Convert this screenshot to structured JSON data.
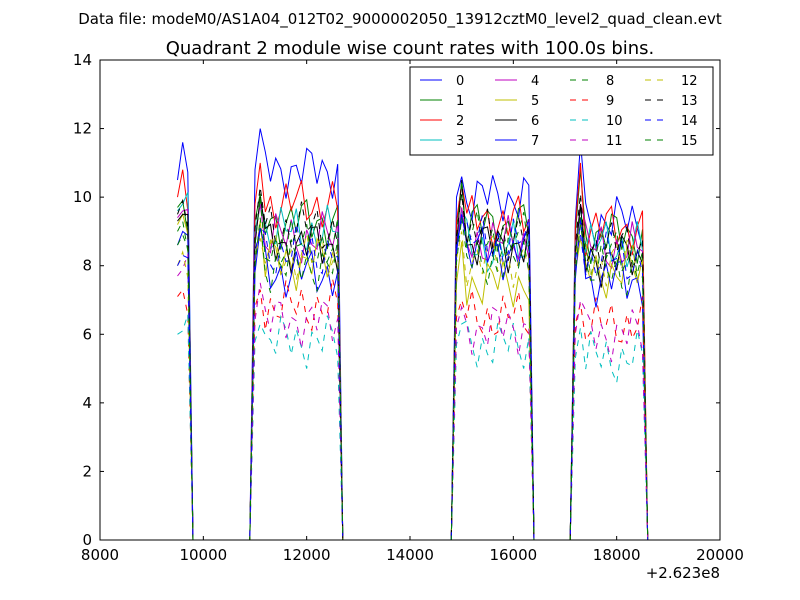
{
  "chart_data": {
    "type": "line",
    "suptitle": "Data file: modeM0/AS1A04_012T02_9000002050_13912cztM0_level2_quad_clean.evt",
    "title": "Quadrant 2 module wise count rates with 100.0s bins.",
    "xlabel": "",
    "ylabel": "",
    "x_offset_label": "+2.623e8",
    "xlim": [
      8000,
      20000
    ],
    "ylim": [
      0,
      14
    ],
    "xticks": [
      8000,
      10000,
      12000,
      14000,
      16000,
      18000,
      20000
    ],
    "yticks": [
      0,
      2,
      4,
      6,
      8,
      10,
      12,
      14
    ],
    "grid": false,
    "legend": {
      "placement": "top-right",
      "columns": 4
    },
    "segments": [
      [
        9500,
        9700
      ],
      [
        11000,
        12600
      ],
      [
        14900,
        16300
      ],
      [
        17200,
        18500
      ]
    ],
    "series": [
      {
        "name": "0",
        "color": "#0000ff",
        "dash": "solid",
        "levels": [
          10.5,
          10.8,
          10.0,
          9.3
        ],
        "peaks": [
          11.6,
          12.0,
          10.6,
          11.6
        ]
      },
      {
        "name": "1",
        "color": "#008000",
        "dash": "solid",
        "levels": [
          9.7,
          9.3,
          9.2,
          8.9
        ],
        "peaks": [
          9.9,
          10.1,
          10.4,
          10.8
        ]
      },
      {
        "name": "2",
        "color": "#ff0000",
        "dash": "solid",
        "levels": [
          10.0,
          9.8,
          9.3,
          9.1
        ],
        "peaks": [
          10.8,
          11.0,
          10.4,
          11.0
        ]
      },
      {
        "name": "3",
        "color": "#00bfbf",
        "dash": "solid",
        "levels": [
          9.6,
          9.0,
          8.5,
          8.6
        ],
        "peaks": [
          9.8,
          9.8,
          9.6,
          9.7
        ]
      },
      {
        "name": "4",
        "color": "#bf00bf",
        "dash": "solid",
        "levels": [
          9.4,
          8.8,
          8.7,
          8.5
        ],
        "peaks": [
          9.6,
          9.8,
          9.7,
          9.8
        ]
      },
      {
        "name": "5",
        "color": "#bfbf00",
        "dash": "solid",
        "levels": [
          9.2,
          8.1,
          7.5,
          7.8
        ],
        "peaks": [
          9.5,
          9.3,
          8.7,
          8.8
        ]
      },
      {
        "name": "6",
        "color": "#000000",
        "dash": "solid",
        "levels": [
          9.3,
          8.6,
          8.6,
          8.2
        ],
        "peaks": [
          9.5,
          10.0,
          10.5,
          9.8
        ]
      },
      {
        "name": "7",
        "color": "#0000ff",
        "dash": "solid",
        "levels": [
          8.6,
          7.8,
          8.4,
          7.6
        ],
        "peaks": [
          9.0,
          9.1,
          9.5,
          9.4
        ]
      },
      {
        "name": "8",
        "color": "#008000",
        "dash": "dashed",
        "levels": [
          9.0,
          8.6,
          8.8,
          8.4
        ],
        "peaks": [
          9.3,
          10.0,
          10.5,
          9.5
        ]
      },
      {
        "name": "9",
        "color": "#ff0000",
        "dash": "dashed",
        "levels": [
          7.1,
          6.8,
          6.5,
          6.3
        ],
        "peaks": [
          7.3,
          7.3,
          7.0,
          6.9
        ]
      },
      {
        "name": "10",
        "color": "#00bfbf",
        "dash": "dashed",
        "levels": [
          6.0,
          5.8,
          5.7,
          5.3
        ],
        "peaks": [
          6.1,
          6.3,
          6.3,
          6.2
        ]
      },
      {
        "name": "11",
        "color": "#bf00bf",
        "dash": "dashed",
        "levels": [
          7.7,
          6.4,
          6.2,
          6.0
        ],
        "peaks": [
          7.9,
          7.5,
          6.8,
          7.0
        ]
      },
      {
        "name": "12",
        "color": "#bfbf00",
        "dash": "dashed",
        "levels": [
          8.0,
          8.3,
          8.2,
          8.2
        ],
        "peaks": [
          8.4,
          8.8,
          9.0,
          9.2
        ]
      },
      {
        "name": "13",
        "color": "#000000",
        "dash": "dashed",
        "levels": [
          9.5,
          9.1,
          8.9,
          8.6
        ],
        "peaks": [
          9.9,
          10.3,
          10.1,
          10.1
        ]
      },
      {
        "name": "14",
        "color": "#0000ff",
        "dash": "dashed",
        "levels": [
          8.0,
          8.4,
          8.7,
          8.2
        ],
        "peaks": [
          8.3,
          9.1,
          9.3,
          8.9
        ]
      },
      {
        "name": "15",
        "color": "#008000",
        "dash": "dashed",
        "levels": [
          8.6,
          8.0,
          8.1,
          7.8
        ],
        "peaks": [
          8.9,
          9.4,
          9.4,
          9.2
        ]
      }
    ]
  }
}
